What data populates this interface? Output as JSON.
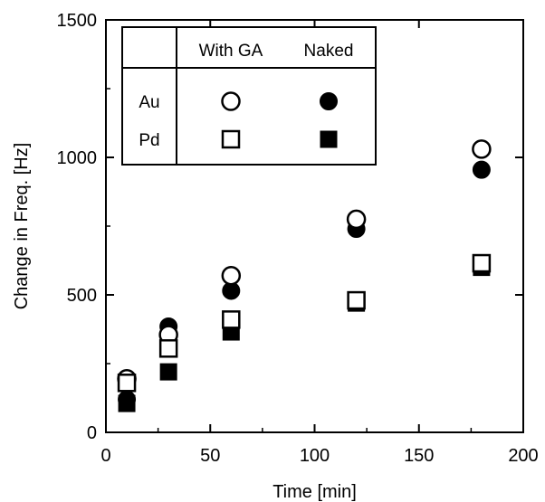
{
  "chart_data": {
    "type": "scatter",
    "title": "",
    "xlabel": "Time [min]",
    "ylabel": "Change in Freq. [Hz]",
    "xlim": [
      0,
      200
    ],
    "ylim": [
      0,
      1500
    ],
    "xticks": [
      0,
      50,
      100,
      150,
      200
    ],
    "yticks": [
      0,
      500,
      1000,
      1500
    ],
    "grid": false,
    "legend": {
      "placement": "top-left",
      "columns": [
        "With GA",
        "Naked"
      ],
      "rows": [
        "Au",
        "Pd"
      ]
    },
    "series": [
      {
        "name": "Au With GA",
        "marker": "circle-open",
        "x": [
          10,
          30,
          60,
          120,
          180
        ],
        "y": [
          195,
          355,
          570,
          775,
          1030
        ]
      },
      {
        "name": "Au Naked",
        "marker": "circle-filled",
        "x": [
          10,
          30,
          60,
          120,
          180
        ],
        "y": [
          120,
          385,
          515,
          740,
          955
        ]
      },
      {
        "name": "Pd With GA",
        "marker": "square-open",
        "x": [
          10,
          30,
          60,
          120,
          180
        ],
        "y": [
          180,
          305,
          410,
          480,
          615
        ]
      },
      {
        "name": "Pd Naked",
        "marker": "square-filled",
        "x": [
          10,
          30,
          60,
          120,
          180
        ],
        "y": [
          105,
          220,
          365,
          470,
          600
        ]
      }
    ]
  }
}
